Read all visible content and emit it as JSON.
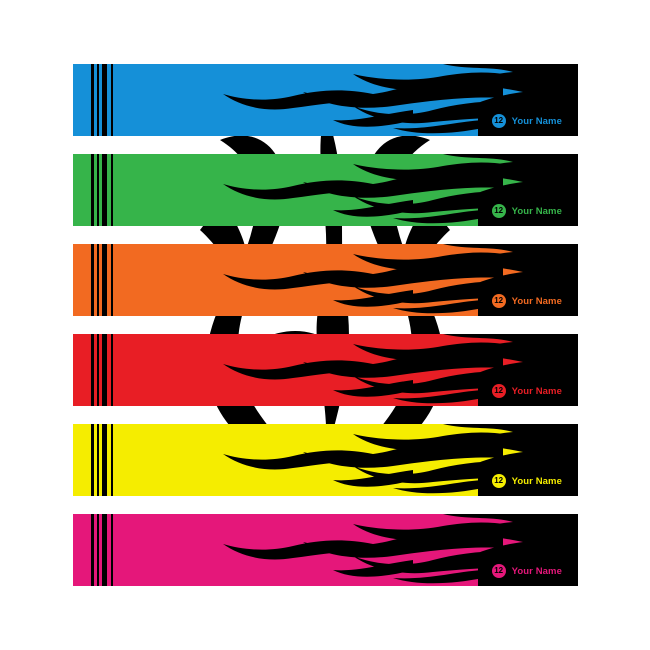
{
  "decal": {
    "number": "12",
    "name": "Your Name",
    "strips": [
      {
        "id": "blue",
        "color": "#1590d8"
      },
      {
        "id": "green",
        "color": "#36b44a"
      },
      {
        "id": "orange",
        "color": "#f26a21"
      },
      {
        "id": "red",
        "color": "#e81e25"
      },
      {
        "id": "yellow",
        "color": "#f5ed00"
      },
      {
        "id": "pink",
        "color": "#e5177a"
      }
    ],
    "flame_color": "#000000",
    "icons": [
      "tribal-flame-graphic",
      "flame-icon",
      "number-badge-icon"
    ]
  }
}
